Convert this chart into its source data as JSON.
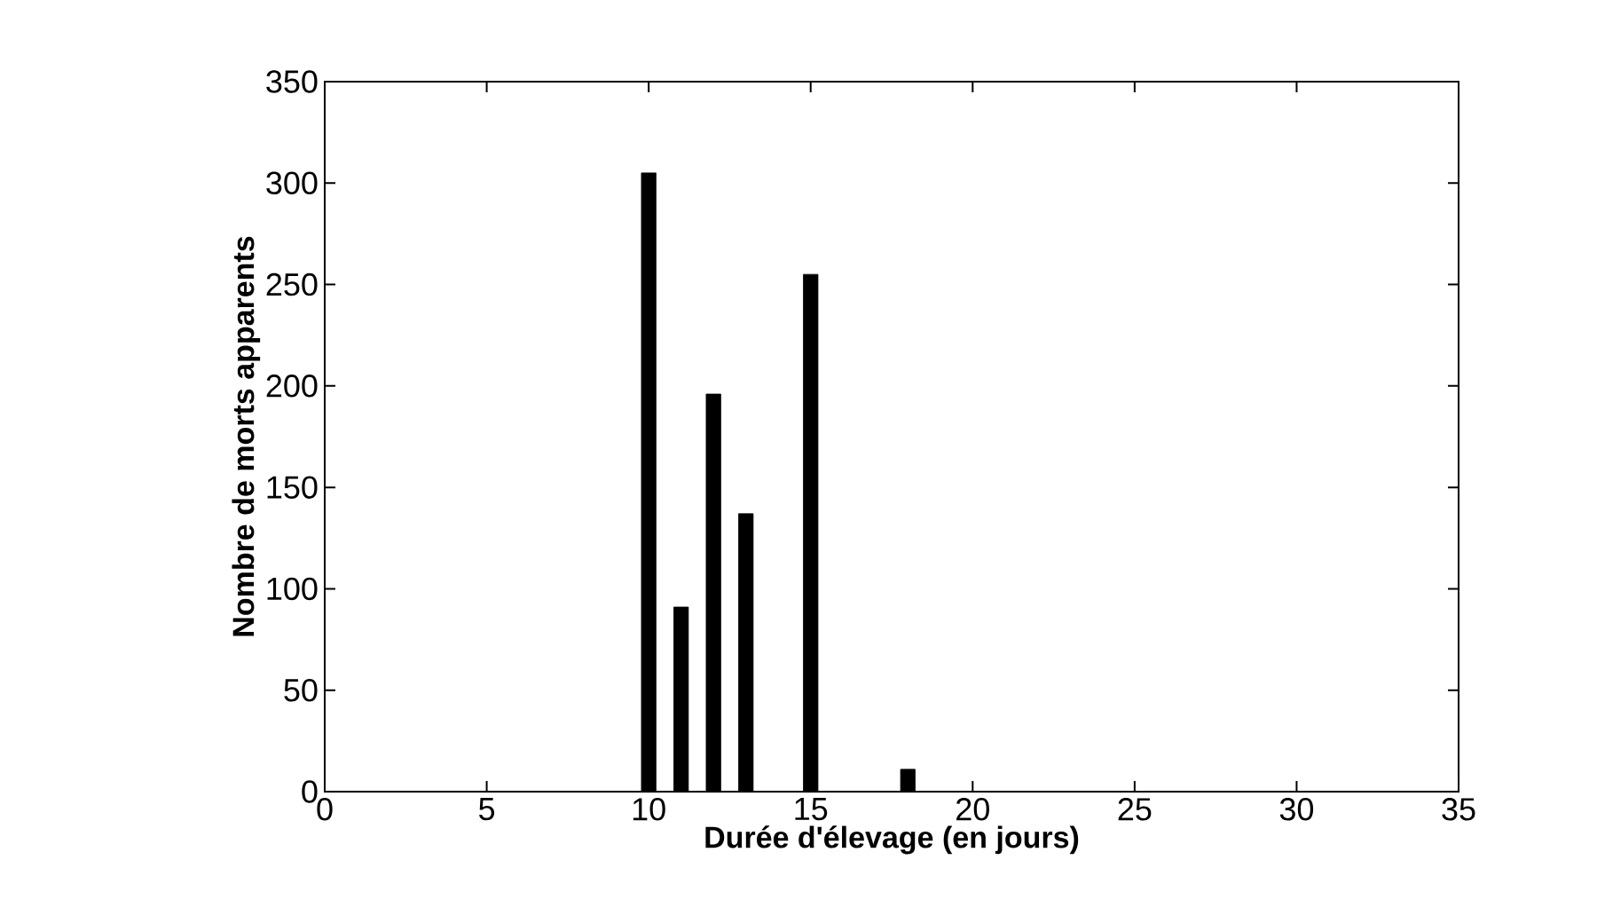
{
  "chart_data": {
    "type": "bar",
    "xlabel": "Durée d'élevage (en jours)",
    "ylabel": "Nombre de morts apparents",
    "x": [
      10,
      11,
      12,
      13,
      15,
      18
    ],
    "values": [
      305,
      91,
      196,
      137,
      255,
      11
    ],
    "color": "#000000",
    "xlim": [
      0,
      35
    ],
    "xticks": [
      0,
      5,
      10,
      15,
      20,
      25,
      30,
      35
    ],
    "ylim": [
      0,
      350
    ],
    "yticks": [
      0,
      50,
      100,
      150,
      200,
      250,
      300,
      350
    ],
    "grid": false
  }
}
